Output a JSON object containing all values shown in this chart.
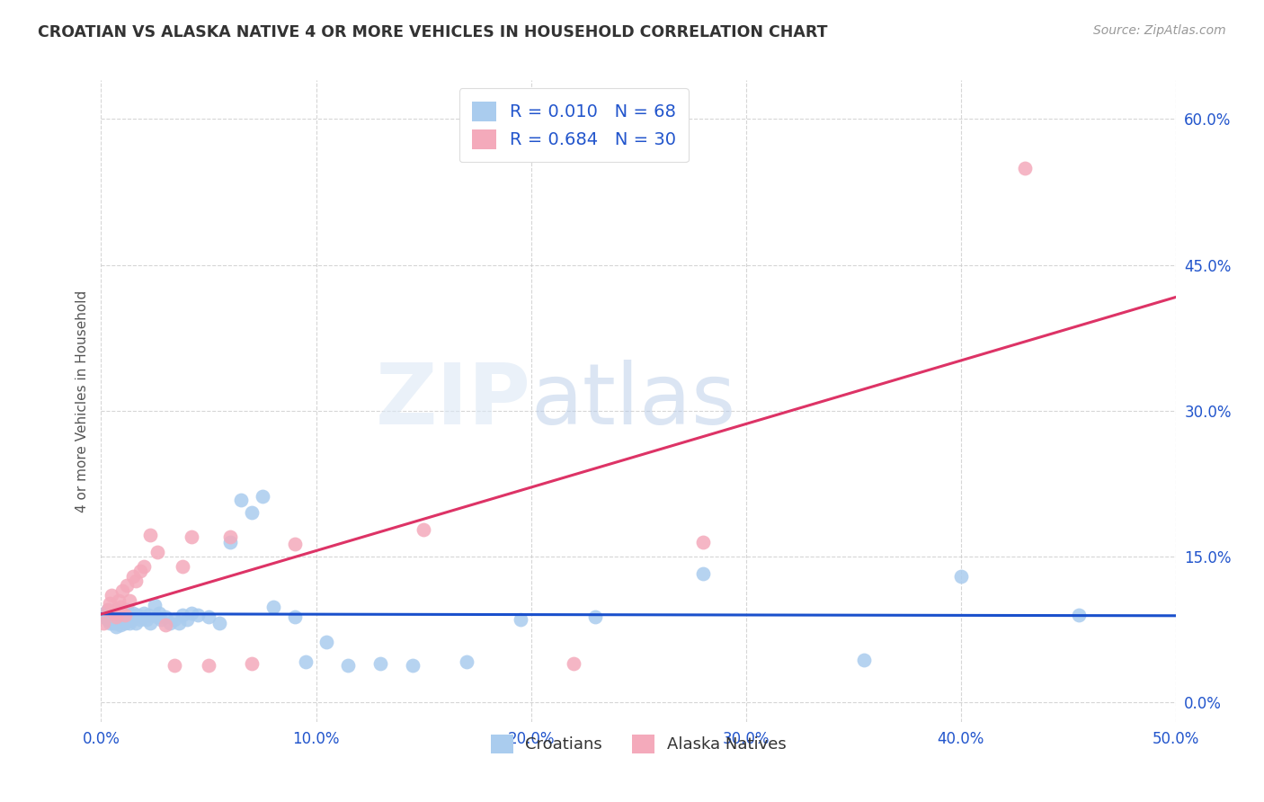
{
  "title": "CROATIAN VS ALASKA NATIVE 4 OR MORE VEHICLES IN HOUSEHOLD CORRELATION CHART",
  "source": "Source: ZipAtlas.com",
  "ylabel": "4 or more Vehicles in Household",
  "xlim": [
    0.0,
    0.5
  ],
  "ylim": [
    -0.02,
    0.64
  ],
  "croatian_color": "#aaccee",
  "alaska_color": "#f4aabb",
  "croatian_line_color": "#1a50cc",
  "alaska_line_color": "#dd3366",
  "text_color": "#2255cc",
  "title_color": "#333333",
  "grid_color": "#cccccc",
  "r_croatian": 0.01,
  "n_croatian": 68,
  "r_alaska": 0.684,
  "n_alaska": 30,
  "croatian_x": [
    0.001,
    0.002,
    0.003,
    0.003,
    0.004,
    0.004,
    0.005,
    0.005,
    0.006,
    0.006,
    0.007,
    0.007,
    0.008,
    0.008,
    0.009,
    0.009,
    0.01,
    0.01,
    0.011,
    0.011,
    0.012,
    0.012,
    0.013,
    0.013,
    0.014,
    0.014,
    0.015,
    0.015,
    0.016,
    0.017,
    0.018,
    0.019,
    0.02,
    0.021,
    0.022,
    0.023,
    0.025,
    0.026,
    0.027,
    0.028,
    0.03,
    0.032,
    0.034,
    0.036,
    0.038,
    0.04,
    0.042,
    0.045,
    0.05,
    0.055,
    0.06,
    0.065,
    0.07,
    0.075,
    0.08,
    0.09,
    0.095,
    0.105,
    0.115,
    0.13,
    0.145,
    0.17,
    0.195,
    0.23,
    0.28,
    0.355,
    0.4,
    0.455
  ],
  "croatian_y": [
    0.088,
    0.092,
    0.085,
    0.095,
    0.082,
    0.09,
    0.086,
    0.093,
    0.082,
    0.09,
    0.078,
    0.095,
    0.084,
    0.092,
    0.088,
    0.08,
    0.086,
    0.092,
    0.082,
    0.09,
    0.085,
    0.095,
    0.088,
    0.082,
    0.09,
    0.085,
    0.088,
    0.092,
    0.082,
    0.09,
    0.085,
    0.088,
    0.092,
    0.085,
    0.09,
    0.082,
    0.1,
    0.088,
    0.092,
    0.085,
    0.088,
    0.082,
    0.085,
    0.082,
    0.09,
    0.085,
    0.092,
    0.09,
    0.088,
    0.082,
    0.165,
    0.208,
    0.195,
    0.212,
    0.098,
    0.088,
    0.042,
    0.062,
    0.038,
    0.04,
    0.038,
    0.042,
    0.085,
    0.088,
    0.132,
    0.044,
    0.13,
    0.09
  ],
  "alaska_x": [
    0.001,
    0.003,
    0.004,
    0.005,
    0.006,
    0.007,
    0.008,
    0.009,
    0.01,
    0.011,
    0.012,
    0.013,
    0.015,
    0.016,
    0.018,
    0.02,
    0.023,
    0.026,
    0.03,
    0.034,
    0.038,
    0.042,
    0.05,
    0.06,
    0.07,
    0.09,
    0.15,
    0.22,
    0.28,
    0.43
  ],
  "alaska_y": [
    0.082,
    0.095,
    0.102,
    0.11,
    0.092,
    0.088,
    0.105,
    0.098,
    0.115,
    0.09,
    0.12,
    0.105,
    0.13,
    0.125,
    0.135,
    0.14,
    0.172,
    0.155,
    0.08,
    0.038,
    0.14,
    0.17,
    0.038,
    0.17,
    0.04,
    0.163,
    0.178,
    0.04,
    0.165,
    0.55
  ]
}
